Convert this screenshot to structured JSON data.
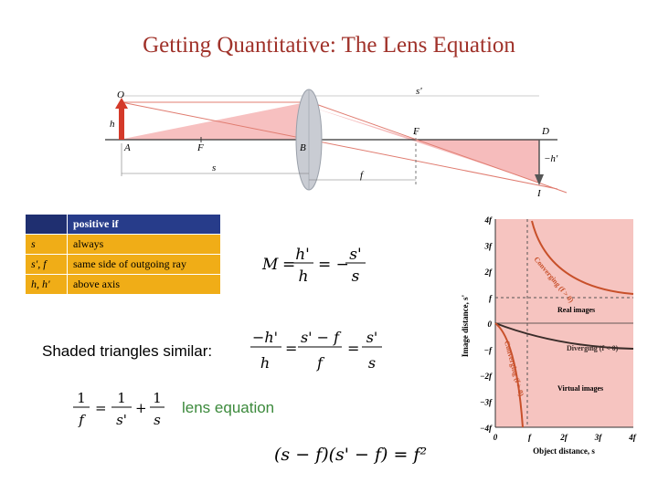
{
  "slide": {
    "title": "Getting Quantitative:  The Lens Equation",
    "similar_label": "Shaded triangles similar:",
    "lens_eq_label": "lens equation"
  },
  "sign_table": {
    "header": "positive if",
    "rows": [
      {
        "symbol": "s",
        "meaning": "always"
      },
      {
        "symbol": "s', f",
        "meaning": "same side of outgoing ray"
      },
      {
        "symbol": "h, h'",
        "meaning": "above axis"
      }
    ]
  },
  "ray_diagram": {
    "labels": {
      "object_top": "O",
      "object_base": "A",
      "object_height": "h",
      "focus_front": "F",
      "lens_center": "B",
      "focus_back": "F",
      "image_base": "D",
      "image_top": "I",
      "image_height": "−h'",
      "object_distance": "s",
      "image_distance": "s'",
      "focal_length": "f"
    },
    "colors": {
      "shade": "#f5b0b0",
      "object": "#d43a2a",
      "lens": "#c9ccd3",
      "image": "#d43a2a"
    }
  },
  "equations": {
    "magnification": {
      "lhs": "M",
      "n1": "h'",
      "d1": "h",
      "n2": "s'",
      "d2": "s"
    },
    "similar": {
      "n1": "−h'",
      "d1": "h",
      "n2": "s' − f",
      "d2": "f",
      "n3": "s'",
      "d3": "s"
    },
    "lens": {
      "n1": "1",
      "d1": "f",
      "n2": "1",
      "d2": "s'",
      "n3": "1",
      "d3": "s"
    },
    "newton": "(s − f)(s' − f) = f²"
  },
  "graph": {
    "y_ticks": [
      "4f",
      "3f",
      "2f",
      "f",
      "0",
      "−f",
      "−2f",
      "−3f",
      "−4f"
    ],
    "x_ticks": [
      "0",
      "f",
      "2f",
      "3f",
      "4f"
    ],
    "y_axis_label": "Image distance, s'",
    "x_axis_label": "Object distance, s",
    "curve_labels": {
      "converging_upper": "Converging (f > 0)",
      "diverging": "Diverging (f < 0)",
      "converging_lower": "Converging (f > 0)"
    },
    "region_labels": {
      "real": "Real images",
      "virtual": "Virtual images"
    },
    "colors": {
      "background": "#f6c4c0",
      "converging": "#c8502a",
      "diverging": "#3a2d2a"
    }
  }
}
